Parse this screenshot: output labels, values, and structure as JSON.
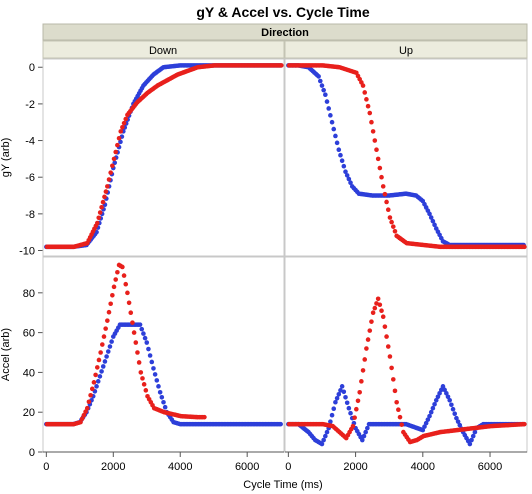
{
  "chart_data": {
    "type": "scatter",
    "title": "gY & Accel vs. Cycle Time",
    "group_label": "Direction",
    "columns": [
      "Down",
      "Up"
    ],
    "xlabel": "Cycle Time (ms)",
    "xlim": [
      -100,
      7100
    ],
    "x_ticks": [
      0,
      2000,
      4000,
      6000
    ],
    "x_tick_labels": [
      "0",
      "2000",
      "4000",
      "6000"
    ],
    "grid": false,
    "colors": {
      "red_series": "#e8201c",
      "blue_series": "#2d3fd9"
    },
    "panels": [
      {
        "row": "gY (arb)",
        "ylabel": "gY (arb)",
        "ylim": [
          -10.3,
          0.45
        ],
        "y_ticks": [
          0,
          -2,
          -4,
          -6,
          -8,
          -10
        ],
        "y_tick_labels": [
          "0",
          "-2",
          "-4",
          "-6",
          "-8",
          "-10"
        ],
        "cells": [
          {
            "column": "Down",
            "red": [
              [
                0,
                -9.8
              ],
              [
                400,
                -9.8
              ],
              [
                800,
                -9.8
              ],
              [
                1200,
                -9.6
              ],
              [
                1500,
                -8.5
              ],
              [
                1800,
                -6.5
              ],
              [
                2000,
                -5
              ],
              [
                2200,
                -3.5
              ],
              [
                2400,
                -2.6
              ],
              [
                2700,
                -1.9
              ],
              [
                3000,
                -1.4
              ],
              [
                3300,
                -1
              ],
              [
                3600,
                -0.7
              ],
              [
                3900,
                -0.4
              ],
              [
                4200,
                -0.2
              ],
              [
                4500,
                0
              ],
              [
                5000,
                0.1
              ],
              [
                5500,
                0.1
              ],
              [
                6000,
                0.1
              ],
              [
                6500,
                0.1
              ],
              [
                7000,
                0.1
              ]
            ],
            "blue": [
              [
                0,
                -9.8
              ],
              [
                400,
                -9.8
              ],
              [
                800,
                -9.8
              ],
              [
                1200,
                -9.7
              ],
              [
                1500,
                -9
              ],
              [
                1750,
                -7.5
              ],
              [
                2000,
                -5.5
              ],
              [
                2300,
                -3.5
              ],
              [
                2600,
                -2
              ],
              [
                2900,
                -1
              ],
              [
                3200,
                -0.4
              ],
              [
                3500,
                0
              ],
              [
                4000,
                0.1
              ],
              [
                4500,
                0.1
              ],
              [
                5000,
                0.1
              ],
              [
                5500,
                0.1
              ],
              [
                6000,
                0.1
              ],
              [
                6500,
                0.1
              ],
              [
                7000,
                0.1
              ]
            ]
          },
          {
            "column": "Up",
            "red": [
              [
                0,
                0.1
              ],
              [
                500,
                0.1
              ],
              [
                1000,
                0.1
              ],
              [
                1500,
                0
              ],
              [
                2000,
                -0.3
              ],
              [
                2200,
                -1
              ],
              [
                2400,
                -2.5
              ],
              [
                2600,
                -4.5
              ],
              [
                2800,
                -6.5
              ],
              [
                3000,
                -8.2
              ],
              [
                3200,
                -9.2
              ],
              [
                3500,
                -9.6
              ],
              [
                4000,
                -9.7
              ],
              [
                4500,
                -9.8
              ],
              [
                5000,
                -9.8
              ],
              [
                5500,
                -9.8
              ],
              [
                6000,
                -9.8
              ],
              [
                6500,
                -9.8
              ],
              [
                7000,
                -9.8
              ]
            ],
            "blue": [
              [
                0,
                0.1
              ],
              [
                300,
                0.1
              ],
              [
                600,
                0
              ],
              [
                900,
                -0.5
              ],
              [
                1100,
                -1.5
              ],
              [
                1300,
                -3
              ],
              [
                1500,
                -4.5
              ],
              [
                1700,
                -5.7
              ],
              [
                1900,
                -6.5
              ],
              [
                2100,
                -6.9
              ],
              [
                2500,
                -7
              ],
              [
                3000,
                -7
              ],
              [
                3500,
                -6.9
              ],
              [
                3800,
                -7
              ],
              [
                4000,
                -7.3
              ],
              [
                4200,
                -8
              ],
              [
                4400,
                -8.8
              ],
              [
                4600,
                -9.5
              ],
              [
                4800,
                -9.7
              ],
              [
                5200,
                -9.7
              ],
              [
                5600,
                -9.7
              ],
              [
                6000,
                -9.7
              ],
              [
                6500,
                -9.7
              ],
              [
                7000,
                -9.7
              ]
            ]
          }
        ]
      },
      {
        "row": "Accel (arb)",
        "ylabel": "Accel (arb)",
        "ylim": [
          0,
          98
        ],
        "y_ticks": [
          0,
          20,
          40,
          60,
          80
        ],
        "y_tick_labels": [
          "0",
          "20",
          "40",
          "60",
          "80"
        ],
        "cells": [
          {
            "column": "Down",
            "red": [
              [
                0,
                14
              ],
              [
                400,
                14
              ],
              [
                800,
                14
              ],
              [
                1000,
                15
              ],
              [
                1200,
                22
              ],
              [
                1400,
                35
              ],
              [
                1600,
                50
              ],
              [
                1800,
                66
              ],
              [
                2000,
                83
              ],
              [
                2150,
                94
              ],
              [
                2250,
                93
              ],
              [
                2400,
                80
              ],
              [
                2600,
                60
              ],
              [
                2800,
                40
              ],
              [
                3000,
                28
              ],
              [
                3200,
                22
              ],
              [
                3500,
                20
              ],
              [
                4000,
                18
              ],
              [
                4500,
                17.5
              ],
              [
                4700,
                17.5
              ]
            ],
            "blue": [
              [
                0,
                14
              ],
              [
                400,
                14
              ],
              [
                800,
                14
              ],
              [
                1000,
                15
              ],
              [
                1200,
                20
              ],
              [
                1400,
                28
              ],
              [
                1600,
                38
              ],
              [
                1800,
                48
              ],
              [
                2000,
                58
              ],
              [
                2200,
                64
              ],
              [
                2500,
                64
              ],
              [
                2800,
                64
              ],
              [
                3000,
                55
              ],
              [
                3200,
                42
              ],
              [
                3400,
                30
              ],
              [
                3600,
                20
              ],
              [
                3800,
                15
              ],
              [
                4000,
                14
              ],
              [
                4500,
                14
              ],
              [
                5000,
                14
              ],
              [
                5500,
                14
              ],
              [
                6000,
                14
              ],
              [
                6500,
                14
              ],
              [
                7000,
                14
              ]
            ]
          },
          {
            "column": "Up",
            "red": [
              [
                0,
                14
              ],
              [
                500,
                14
              ],
              [
                1000,
                14
              ],
              [
                1300,
                13
              ],
              [
                1500,
                10
              ],
              [
                1700,
                7
              ],
              [
                1900,
                13
              ],
              [
                2100,
                30
              ],
              [
                2300,
                52
              ],
              [
                2500,
                70
              ],
              [
                2650,
                77
              ],
              [
                2800,
                68
              ],
              [
                3000,
                48
              ],
              [
                3200,
                25
              ],
              [
                3400,
                10
              ],
              [
                3600,
                5
              ],
              [
                3800,
                6
              ],
              [
                4000,
                8
              ],
              [
                4500,
                10
              ],
              [
                5000,
                11
              ],
              [
                5500,
                12
              ],
              [
                6000,
                13
              ],
              [
                6500,
                13.5
              ],
              [
                7000,
                14
              ]
            ],
            "blue": [
              [
                0,
                14
              ],
              [
                300,
                14
              ],
              [
                600,
                10
              ],
              [
                800,
                6
              ],
              [
                1000,
                4
              ],
              [
                1200,
                12
              ],
              [
                1400,
                25
              ],
              [
                1600,
                33
              ],
              [
                1800,
                22
              ],
              [
                2000,
                12
              ],
              [
                2200,
                6
              ],
              [
                2400,
                14
              ],
              [
                3000,
                14
              ],
              [
                3500,
                14
              ],
              [
                4000,
                11
              ],
              [
                4200,
                18
              ],
              [
                4400,
                26
              ],
              [
                4600,
                33
              ],
              [
                4800,
                26
              ],
              [
                5000,
                17
              ],
              [
                5200,
                10
              ],
              [
                5400,
                4
              ],
              [
                5600,
                12
              ],
              [
                5800,
                14
              ],
              [
                6000,
                14
              ],
              [
                6500,
                14
              ],
              [
                7000,
                14
              ]
            ]
          }
        ]
      }
    ]
  }
}
